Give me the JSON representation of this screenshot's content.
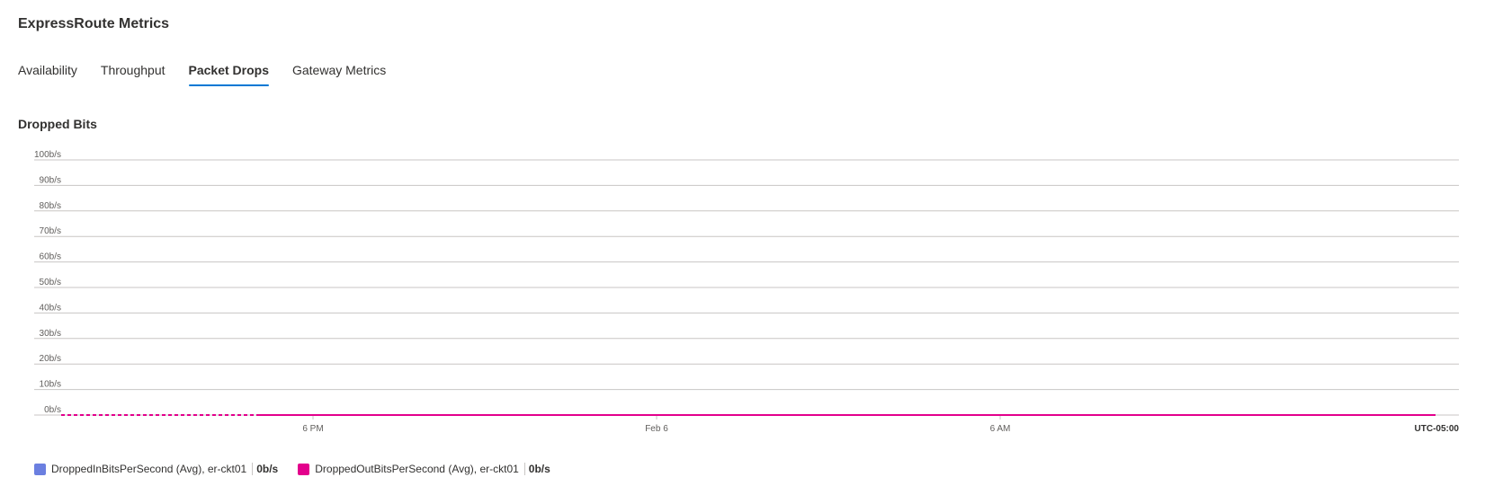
{
  "page": {
    "title": "ExpressRoute Metrics"
  },
  "tabs": [
    {
      "label": "Availability",
      "active": false
    },
    {
      "label": "Throughput",
      "active": false
    },
    {
      "label": "Packet Drops",
      "active": true
    },
    {
      "label": "Gateway Metrics",
      "active": false
    }
  ],
  "chart": {
    "title": "Dropped Bits",
    "timezone_label": "UTC-05:00",
    "colors": {
      "accent": "#0078d4",
      "series_in": "#6b7fe0",
      "series_out": "#e3008c",
      "gridline": "#c8c6c4"
    }
  },
  "legend": [
    {
      "name": "DroppedInBitsPerSecond (Avg), er-ckt01",
      "value": "0b/s",
      "color": "#6b7fe0"
    },
    {
      "name": "DroppedOutBitsPerSecond (Avg), er-ckt01",
      "value": "0b/s",
      "color": "#e3008c"
    }
  ],
  "chart_data": {
    "type": "line",
    "title": "Dropped Bits",
    "xlabel": "",
    "ylabel": "",
    "y_ticks": [
      "0b/s",
      "10b/s",
      "20b/s",
      "30b/s",
      "40b/s",
      "50b/s",
      "60b/s",
      "70b/s",
      "80b/s",
      "90b/s",
      "100b/s"
    ],
    "ylim": [
      0,
      100
    ],
    "x_ticks": [
      "6 PM",
      "Feb 6",
      "6 AM"
    ],
    "grid": true,
    "legend_position": "bottom-left",
    "series": [
      {
        "name": "DroppedInBitsPerSecond (Avg), er-ckt01",
        "color": "#6b7fe0",
        "value": 0
      },
      {
        "name": "DroppedOutBitsPerSecond (Avg), er-ckt01",
        "color": "#e3008c",
        "value": 0
      }
    ]
  }
}
